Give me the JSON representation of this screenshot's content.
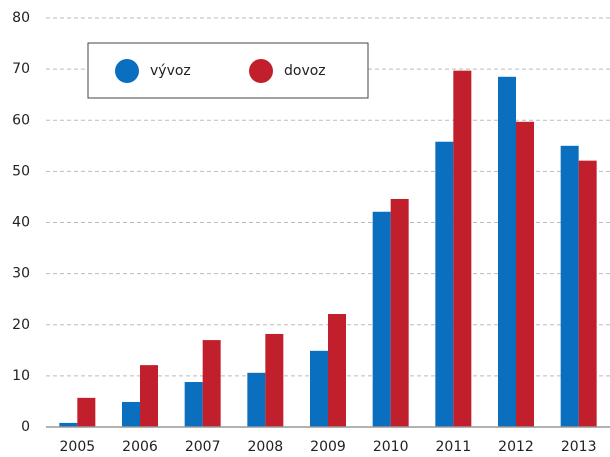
{
  "chart_data": {
    "type": "bar",
    "categories": [
      "2005",
      "2006",
      "2007",
      "2008",
      "2009",
      "2010",
      "2011",
      "2012",
      "2013"
    ],
    "series": [
      {
        "name": "vývoz",
        "color": "#0b6fc0",
        "values": [
          0.8,
          4.9,
          8.8,
          10.6,
          14.9,
          42.1,
          55.8,
          68.5,
          55.0
        ]
      },
      {
        "name": "dovoz",
        "color": "#c11f2b",
        "values": [
          5.7,
          12.1,
          17.0,
          18.2,
          22.1,
          44.6,
          69.7,
          59.7,
          52.1
        ]
      }
    ],
    "ylim": [
      0,
      80
    ],
    "yticks": [
      0,
      10,
      20,
      30,
      40,
      50,
      60,
      70,
      80
    ],
    "grid": true
  }
}
